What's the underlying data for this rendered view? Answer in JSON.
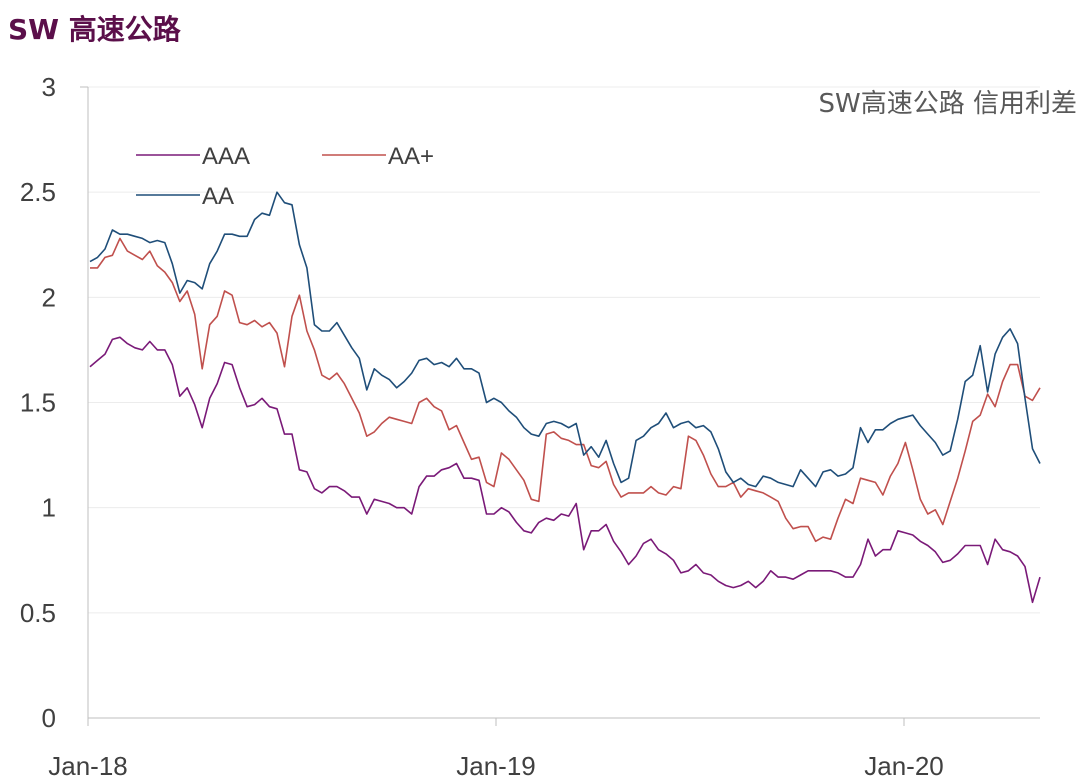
{
  "page": {
    "title": "SW 高速公路"
  },
  "chart_data": {
    "type": "line",
    "title": "SW高速公路 信用利差",
    "xlabel": "",
    "ylabel": "",
    "ylim": [
      0,
      3
    ],
    "yticks": [
      "0",
      "0.5",
      "1",
      "1.5",
      "2",
      "2.5",
      "3"
    ],
    "xticks": [
      "Jan-18",
      "Jan-19",
      "Jan-20"
    ],
    "grid": true,
    "legend": "top-left",
    "x_start": "2018-01",
    "x_end": "2020-05",
    "series": [
      {
        "name": "AAA",
        "color": "#7a1a78",
        "values": [
          1.67,
          1.7,
          1.73,
          1.8,
          1.81,
          1.78,
          1.76,
          1.75,
          1.79,
          1.75,
          1.75,
          1.68,
          1.53,
          1.57,
          1.49,
          1.38,
          1.52,
          1.59,
          1.69,
          1.68,
          1.57,
          1.48,
          1.49,
          1.52,
          1.48,
          1.47,
          1.35,
          1.35,
          1.18,
          1.17,
          1.09,
          1.07,
          1.1,
          1.1,
          1.08,
          1.05,
          1.05,
          0.97,
          1.04,
          1.03,
          1.02,
          1.0,
          1.0,
          0.97,
          1.1,
          1.15,
          1.15,
          1.18,
          1.19,
          1.21,
          1.14,
          1.14,
          1.13,
          0.97,
          0.97,
          1.0,
          0.98,
          0.93,
          0.89,
          0.88,
          0.93,
          0.95,
          0.94,
          0.97,
          0.96,
          1.02,
          0.8,
          0.89,
          0.89,
          0.92,
          0.84,
          0.79,
          0.73,
          0.77,
          0.83,
          0.85,
          0.8,
          0.78,
          0.75,
          0.69,
          0.7,
          0.73,
          0.69,
          0.68,
          0.65,
          0.63,
          0.62,
          0.63,
          0.65,
          0.62,
          0.65,
          0.7,
          0.67,
          0.67,
          0.66,
          0.68,
          0.7,
          0.7,
          0.7,
          0.7,
          0.69,
          0.67,
          0.67,
          0.73,
          0.85,
          0.77,
          0.8,
          0.8,
          0.89,
          0.88,
          0.87,
          0.84,
          0.82,
          0.79,
          0.74,
          0.75,
          0.78,
          0.82,
          0.82,
          0.82,
          0.73,
          0.85,
          0.8,
          0.79,
          0.77,
          0.72,
          0.55,
          0.67
        ]
      },
      {
        "name": "AA+",
        "color": "#c0504d",
        "values": [
          2.14,
          2.14,
          2.19,
          2.2,
          2.28,
          2.22,
          2.2,
          2.18,
          2.22,
          2.15,
          2.12,
          2.07,
          1.98,
          2.03,
          1.92,
          1.66,
          1.87,
          1.91,
          2.03,
          2.01,
          1.88,
          1.87,
          1.89,
          1.86,
          1.88,
          1.83,
          1.67,
          1.91,
          2.01,
          1.84,
          1.75,
          1.63,
          1.61,
          1.64,
          1.59,
          1.52,
          1.45,
          1.34,
          1.36,
          1.4,
          1.43,
          1.42,
          1.41,
          1.4,
          1.5,
          1.52,
          1.48,
          1.46,
          1.37,
          1.39,
          1.31,
          1.23,
          1.24,
          1.12,
          1.1,
          1.26,
          1.23,
          1.18,
          1.13,
          1.04,
          1.03,
          1.35,
          1.36,
          1.33,
          1.32,
          1.3,
          1.3,
          1.2,
          1.19,
          1.22,
          1.11,
          1.05,
          1.07,
          1.07,
          1.07,
          1.1,
          1.07,
          1.06,
          1.1,
          1.09,
          1.34,
          1.32,
          1.25,
          1.16,
          1.1,
          1.1,
          1.12,
          1.05,
          1.09,
          1.08,
          1.07,
          1.05,
          1.03,
          0.95,
          0.9,
          0.91,
          0.91,
          0.84,
          0.86,
          0.85,
          0.95,
          1.04,
          1.02,
          1.14,
          1.13,
          1.12,
          1.06,
          1.15,
          1.21,
          1.31,
          1.18,
          1.04,
          0.97,
          0.99,
          0.92,
          1.03,
          1.14,
          1.27,
          1.41,
          1.44,
          1.54,
          1.48,
          1.6,
          1.68,
          1.68,
          1.53,
          1.51,
          1.57
        ]
      },
      {
        "name": "AA",
        "color": "#1f4e79",
        "values": [
          2.17,
          2.19,
          2.23,
          2.32,
          2.3,
          2.3,
          2.29,
          2.28,
          2.26,
          2.27,
          2.26,
          2.16,
          2.02,
          2.08,
          2.07,
          2.04,
          2.16,
          2.22,
          2.3,
          2.3,
          2.29,
          2.29,
          2.37,
          2.4,
          2.39,
          2.5,
          2.45,
          2.44,
          2.25,
          2.14,
          1.87,
          1.84,
          1.84,
          1.88,
          1.82,
          1.76,
          1.71,
          1.56,
          1.66,
          1.63,
          1.61,
          1.57,
          1.6,
          1.64,
          1.7,
          1.71,
          1.68,
          1.69,
          1.67,
          1.71,
          1.66,
          1.66,
          1.64,
          1.5,
          1.52,
          1.5,
          1.46,
          1.43,
          1.38,
          1.35,
          1.34,
          1.4,
          1.41,
          1.4,
          1.38,
          1.4,
          1.25,
          1.29,
          1.24,
          1.32,
          1.21,
          1.12,
          1.14,
          1.32,
          1.34,
          1.38,
          1.4,
          1.45,
          1.38,
          1.4,
          1.41,
          1.38,
          1.39,
          1.36,
          1.28,
          1.17,
          1.12,
          1.14,
          1.11,
          1.1,
          1.15,
          1.14,
          1.12,
          1.11,
          1.1,
          1.18,
          1.14,
          1.1,
          1.17,
          1.18,
          1.15,
          1.16,
          1.19,
          1.38,
          1.31,
          1.37,
          1.37,
          1.4,
          1.42,
          1.43,
          1.44,
          1.39,
          1.35,
          1.31,
          1.25,
          1.27,
          1.42,
          1.6,
          1.63,
          1.77,
          1.55,
          1.73,
          1.81,
          1.85,
          1.78,
          1.52,
          1.28,
          1.21
        ]
      }
    ]
  }
}
